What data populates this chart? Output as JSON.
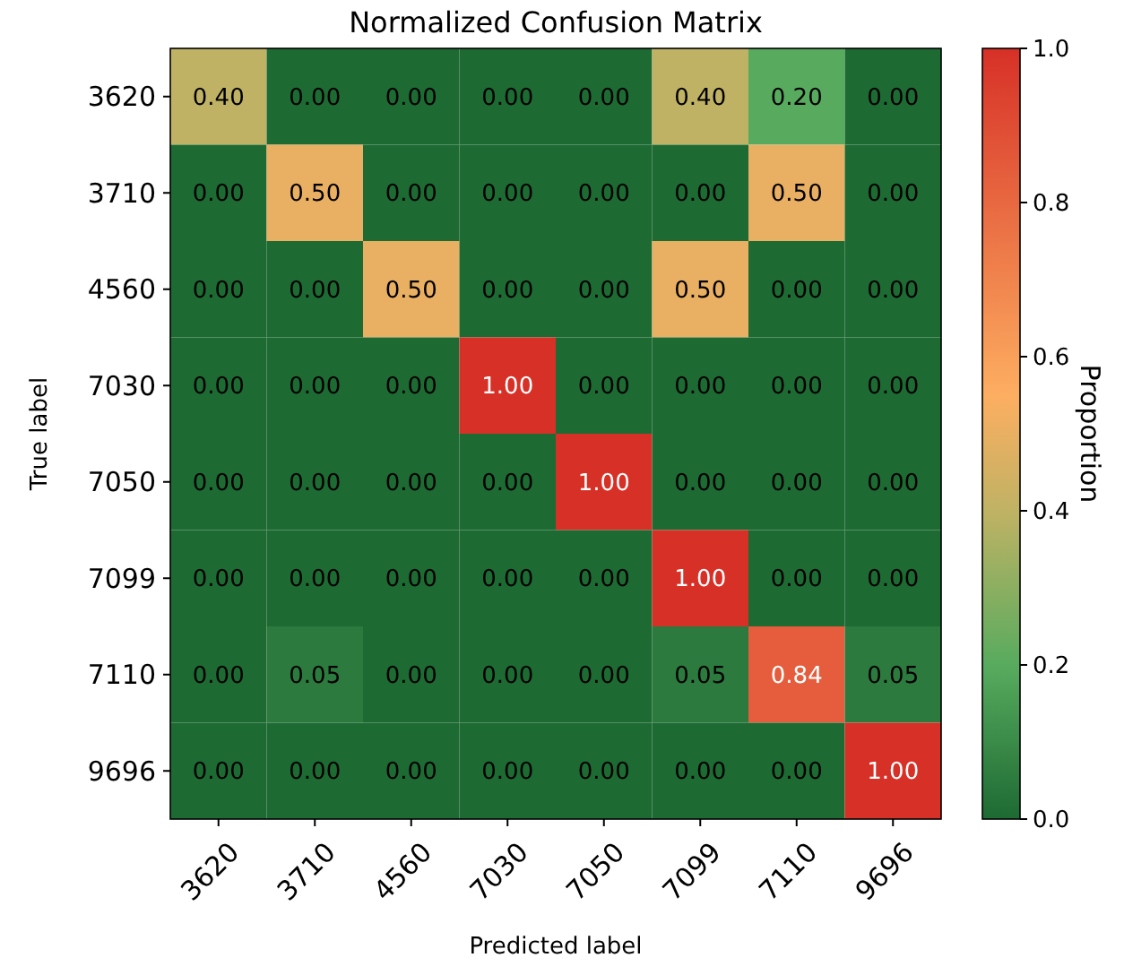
{
  "chart_data": {
    "type": "heatmap",
    "title": "Normalized Confusion Matrix",
    "xlabel": "Predicted label",
    "ylabel": "True label",
    "clabel": "Proportion",
    "categories": [
      "3620",
      "3710",
      "4560",
      "7030",
      "7050",
      "7099",
      "7110",
      "9696"
    ],
    "y_categories": [
      "3620",
      "3710",
      "4560",
      "7030",
      "7050",
      "7099",
      "7110",
      "9696"
    ],
    "cells": [
      [
        0.4,
        0,
        0,
        0,
        0,
        0.4,
        0.2,
        0
      ],
      [
        0,
        0.5,
        0,
        0,
        0,
        0,
        0.5,
        0
      ],
      [
        0,
        0,
        0.5,
        0,
        0,
        0.5,
        0,
        0
      ],
      [
        0,
        0,
        0,
        1,
        0,
        0,
        0,
        0
      ],
      [
        0,
        0,
        0,
        0,
        1,
        0,
        0,
        0
      ],
      [
        0,
        0,
        0,
        0,
        0,
        1,
        0,
        0
      ],
      [
        0,
        0.05,
        0,
        0,
        0,
        0.05,
        0.84,
        0.05
      ],
      [
        0,
        0,
        0,
        0,
        0,
        0,
        0,
        1
      ]
    ],
    "cell_labels": [
      [
        "0.40",
        "0.00",
        "0.00",
        "0.00",
        "0.00",
        "0.40",
        "0.20",
        "0.00"
      ],
      [
        "0.00",
        "0.50",
        "0.00",
        "0.00",
        "0.00",
        "0.00",
        "0.50",
        "0.00"
      ],
      [
        "0.00",
        "0.00",
        "0.50",
        "0.00",
        "0.00",
        "0.50",
        "0.00",
        "0.00"
      ],
      [
        "0.00",
        "0.00",
        "0.00",
        "1.00",
        "0.00",
        "0.00",
        "0.00",
        "0.00"
      ],
      [
        "0.00",
        "0.00",
        "0.00",
        "0.00",
        "1.00",
        "0.00",
        "0.00",
        "0.00"
      ],
      [
        "0.00",
        "0.00",
        "0.00",
        "0.00",
        "0.00",
        "1.00",
        "0.00",
        "0.00"
      ],
      [
        "0.00",
        "0.05",
        "0.00",
        "0.00",
        "0.00",
        "0.05",
        "0.84",
        "0.05"
      ],
      [
        "0.00",
        "0.00",
        "0.00",
        "0.00",
        "0.00",
        "0.00",
        "0.00",
        "1.00"
      ]
    ],
    "clim": [
      0,
      1
    ],
    "cticks": [
      {
        "value": 0,
        "label": "0.0"
      },
      {
        "value": 0.2,
        "label": "0.2"
      },
      {
        "value": 0.4,
        "label": "0.4"
      },
      {
        "value": 0.6,
        "label": "0.6"
      },
      {
        "value": 0.8,
        "label": "0.8"
      },
      {
        "value": 1,
        "label": "1.0"
      }
    ]
  }
}
